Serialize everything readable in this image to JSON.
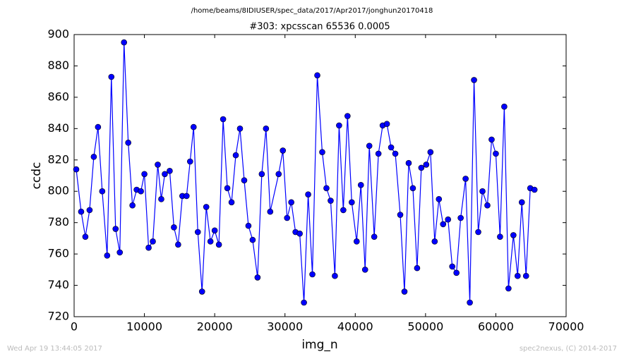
{
  "chart_data": {
    "type": "line",
    "suptitle": "/home/beams/8IDIUSER/spec_data/2017/Apr2017/jonghun20170418",
    "title": "#303: xpcsscan 65536 0.0005",
    "xlabel": "img_n",
    "ylabel": "ccdc",
    "xlim": [
      0,
      70000
    ],
    "xticks": [
      0,
      10000,
      20000,
      30000,
      40000,
      50000,
      60000,
      70000
    ],
    "ylim": [
      720,
      900
    ],
    "yticks": [
      720,
      740,
      760,
      780,
      800,
      820,
      840,
      860,
      880,
      900
    ],
    "series": [
      {
        "name": "ccdc",
        "color": "#0000ff",
        "x": [
          300,
          1000,
          1600,
          2200,
          2800,
          3400,
          4000,
          4700,
          5300,
          5900,
          6500,
          7100,
          7700,
          8300,
          8900,
          9500,
          10000,
          10600,
          11200,
          11900,
          12400,
          12900,
          13600,
          14200,
          14800,
          15400,
          16000,
          16500,
          17000,
          17600,
          18200,
          18800,
          19400,
          20000,
          20600,
          21200,
          21800,
          22400,
          23000,
          23600,
          24200,
          24800,
          25400,
          26100,
          26700,
          27300,
          27900,
          29100,
          29700,
          30300,
          30900,
          31500,
          32100,
          32700,
          33300,
          33900,
          34600,
          35300,
          35900,
          36500,
          37100,
          37700,
          38300,
          38900,
          39500,
          40200,
          40800,
          41400,
          42000,
          42700,
          43300,
          43900,
          44500,
          45100,
          45700,
          46400,
          47000,
          47600,
          48200,
          48800,
          49400,
          50100,
          50700,
          51300,
          51900,
          52500,
          53200,
          53800,
          54400,
          55000,
          55700,
          56300,
          56900,
          57500,
          58100,
          58800,
          59400,
          60000,
          60600,
          61200,
          61800,
          62500,
          63100,
          63700,
          64300,
          64900,
          65500
        ],
        "values": [
          814,
          787,
          771,
          788,
          822,
          841,
          800,
          759,
          873,
          776,
          761,
          895,
          831,
          791,
          801,
          800,
          811,
          764,
          768,
          817,
          795,
          811,
          813,
          777,
          766,
          797,
          797,
          819,
          841,
          774,
          736,
          790,
          768,
          775,
          766,
          846,
          802,
          793,
          823,
          840,
          807,
          778,
          769,
          745,
          811,
          840,
          787,
          811,
          826,
          783,
          793,
          774,
          773,
          729,
          798,
          747,
          874,
          825,
          802,
          794,
          746,
          842,
          788,
          848,
          793,
          768,
          804,
          750,
          829,
          771,
          824,
          842,
          843,
          828,
          824,
          785,
          736,
          818,
          802,
          751,
          815,
          817,
          825,
          768,
          795,
          779,
          782,
          752,
          748,
          783,
          808,
          729,
          871,
          774,
          800,
          791,
          833,
          824,
          771,
          854,
          738,
          772,
          746,
          793,
          746,
          802,
          801
        ]
      }
    ]
  },
  "footer": {
    "left": "Wed Apr 19 13:44:05 2017",
    "right": "spec2nexus, (C) 2014-2017"
  }
}
